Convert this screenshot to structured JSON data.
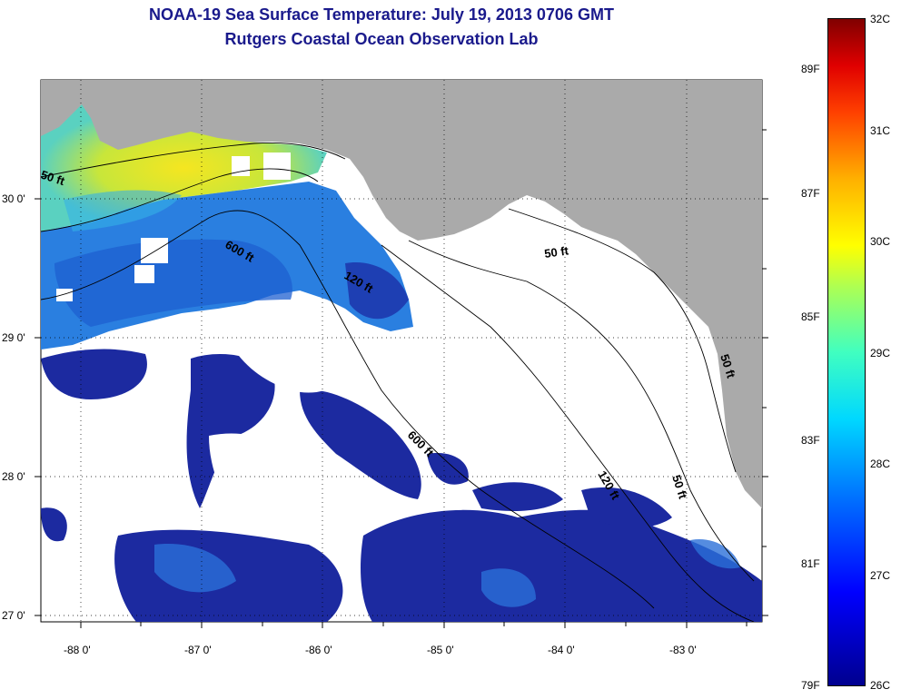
{
  "title": {
    "line1": "NOAA-19 Sea Surface Temperature:  July 19, 2013 0706 GMT",
    "line2": "Rutgers Coastal Ocean Observation Lab"
  },
  "axes": {
    "lon_ticks": [
      "-88 0'",
      "-87 0'",
      "-86 0'",
      "-85 0'",
      "-84 0'",
      "-83 0'"
    ],
    "lat_ticks": [
      "30 0'",
      "29 0'",
      "28 0'",
      "27 0'"
    ]
  },
  "contour_labels": {
    "fifty_west": "50 ft",
    "six_hundred_north": "600 ft",
    "one_twenty_north": "120 ft",
    "fifty_east": "50 ft",
    "six_hundred_south": "600 ft",
    "one_twenty_south": "120 ft",
    "fifty_south": "50 ft",
    "fifty_coast": "50 ft"
  },
  "colorbar": {
    "celsius": [
      "32C",
      "31C",
      "30C",
      "29C",
      "28C",
      "27C",
      "26C"
    ],
    "fahrenheit": [
      "89F",
      "87F",
      "85F",
      "83F",
      "81F",
      "79F"
    ]
  },
  "colors": {
    "land": "#aaaaaa",
    "cloud": "#ffffff",
    "title": "#1a1a8c"
  }
}
